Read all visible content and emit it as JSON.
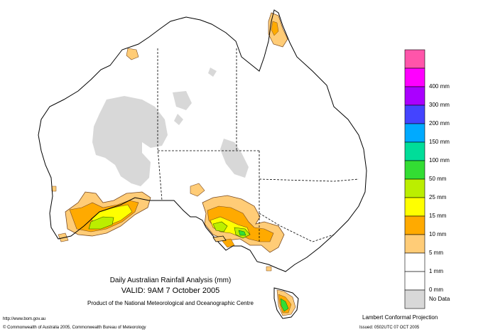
{
  "title": {
    "line1": "Daily Australian Rainfall Analysis (mm)",
    "line2": "VALID: 9AM  7 October 2005",
    "line3": "Product of the National Meteorological and Oceanographic Centre"
  },
  "footer": {
    "url": "http://www.bom.gov.au",
    "copyright": "© Commonwealth of Australia 2005, Commonwealth Bureau of Meteorology",
    "projection": "Lambert Conformal Projection",
    "issued": "Issued: 0502UTC 07 OCT 2005"
  },
  "legend": {
    "items": [
      {
        "label": "",
        "color": "#ff55aa"
      },
      {
        "label": "400 mm",
        "color": "#ff00ff"
      },
      {
        "label": "300 mm",
        "color": "#aa00ff"
      },
      {
        "label": "200 mm",
        "color": "#4444ff"
      },
      {
        "label": "150 mm",
        "color": "#00aaff"
      },
      {
        "label": "100 mm",
        "color": "#00dd99"
      },
      {
        "label": "50 mm",
        "color": "#33dd33"
      },
      {
        "label": "25 mm",
        "color": "#bbee00"
      },
      {
        "label": "15 mm",
        "color": "#ffff00"
      },
      {
        "label": "10 mm",
        "color": "#ffaa00"
      },
      {
        "label": "5 mm",
        "color": "#ffcc77"
      },
      {
        "label": "1 mm",
        "color": "#ffffff"
      },
      {
        "label": "0 mm",
        "color": "#ffffff"
      },
      {
        "label": "No Data",
        "color": "#d8d8d8"
      }
    ]
  },
  "colors": {
    "no_data": "#d8d8d8",
    "one_to_five": "#ffcc77",
    "five_to_ten": "#ffaa00",
    "ten_to_fifteen": "#ffff00",
    "fifteen_to_25": "#bbee00",
    "twentyfive_to_50": "#33dd33"
  }
}
